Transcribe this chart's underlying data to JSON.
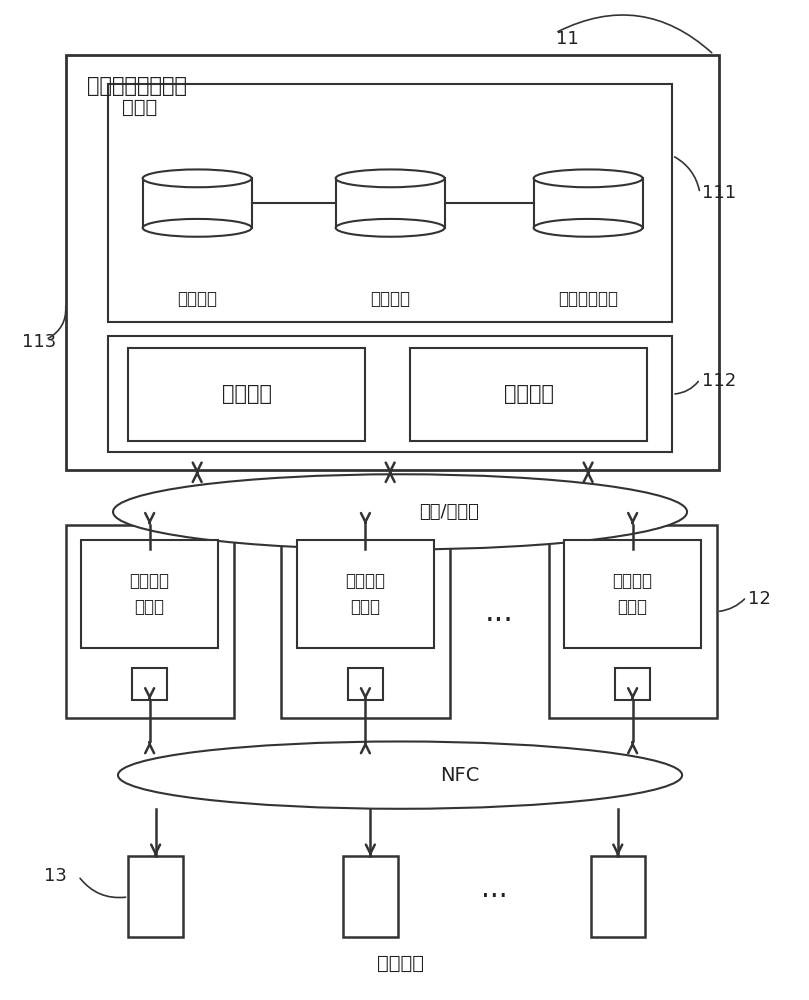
{
  "bg_color": "#ffffff",
  "line_color": "#333333",
  "text_color": "#222222",
  "title_11": "11",
  "title_111": "111",
  "title_112": "112",
  "title_113": "113",
  "title_12": "12",
  "title_13": "13",
  "platform_label": "移动媒体发布平台",
  "db_label": "数据库",
  "db1_label": "地图数据",
  "db2_label": "商户信息",
  "db3_label": "电子优惠信息",
  "send_label": "发送单元",
  "recv_label": "接收单元",
  "network_label": "固网/无线网",
  "nfc_label": "NFC",
  "client_label": "移动媒体\n客户端",
  "terminal_label": "移动终端",
  "dots": "···"
}
